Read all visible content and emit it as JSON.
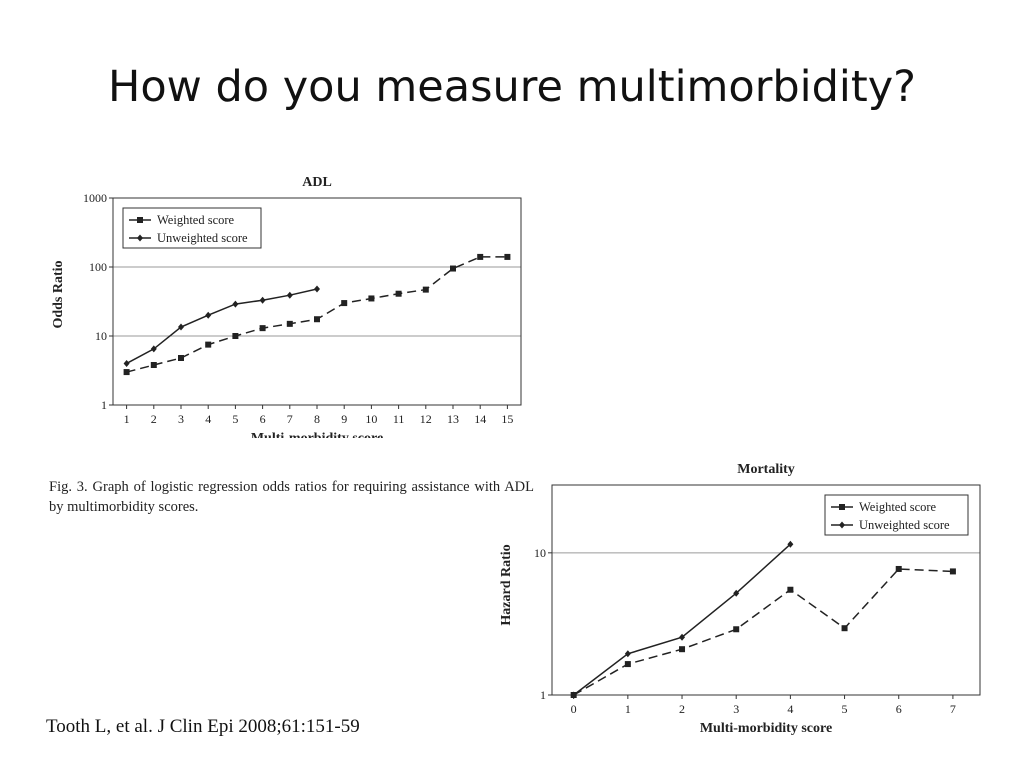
{
  "slide": {
    "title": "How do you measure multimorbidity?",
    "caption": "Fig. 3.  Graph of logistic regression odds ratios for requiring assistance with ADL by multimorbidity scores.",
    "citation": "Tooth L, et al. J Clin Epi 2008;61:151-59"
  },
  "chart_data": [
    {
      "id": "adl",
      "type": "line",
      "title": "ADL",
      "xlabel": "Multi-morbidity score",
      "ylabel": "Odds Ratio",
      "yscale": "log",
      "ylim": [
        1,
        1000
      ],
      "xlim": [
        0.5,
        15.5
      ],
      "yticks": [
        1,
        10,
        100,
        1000
      ],
      "xticks": [
        1,
        2,
        3,
        4,
        5,
        6,
        7,
        8,
        9,
        10,
        11,
        12,
        13,
        14,
        15
      ],
      "gridlines_y": [
        10,
        100
      ],
      "legend_position": "top-left",
      "series": [
        {
          "name": "Weighted score",
          "style": "dashed",
          "marker": "square",
          "x": [
            1,
            2,
            3,
            4,
            5,
            6,
            7,
            8,
            9,
            10,
            11,
            12,
            13,
            14,
            15
          ],
          "values": [
            3,
            3.8,
            4.8,
            7.5,
            10,
            13,
            15,
            17.5,
            30,
            35,
            41,
            47,
            95,
            140,
            140
          ]
        },
        {
          "name": "Unweighted score",
          "style": "solid",
          "marker": "diamond",
          "x": [
            1,
            2,
            3,
            4,
            5,
            6,
            7,
            8
          ],
          "values": [
            4,
            6.5,
            13.5,
            20,
            29,
            33,
            39,
            48
          ]
        }
      ]
    },
    {
      "id": "mortality",
      "type": "line",
      "title": "Mortality",
      "xlabel": "Multi-morbidity score",
      "ylabel": "Hazard Ratio",
      "yscale": "log",
      "ylim": [
        1,
        30
      ],
      "xlim": [
        -0.4,
        7.5
      ],
      "yticks": [
        1,
        10
      ],
      "xticks": [
        0,
        1,
        2,
        3,
        4,
        5,
        6,
        7
      ],
      "gridlines_y": [
        10
      ],
      "legend_position": "top-right",
      "series": [
        {
          "name": "Weighted score",
          "style": "dashed",
          "marker": "square",
          "x": [
            0,
            1,
            2,
            3,
            4,
            5,
            6,
            7
          ],
          "values": [
            1,
            1.65,
            2.1,
            2.9,
            5.5,
            2.95,
            7.7,
            7.4
          ]
        },
        {
          "name": "Unweighted score",
          "style": "solid",
          "marker": "diamond",
          "x": [
            0,
            1,
            2,
            3,
            4
          ],
          "values": [
            1,
            1.95,
            2.55,
            5.2,
            11.5
          ]
        }
      ]
    }
  ]
}
